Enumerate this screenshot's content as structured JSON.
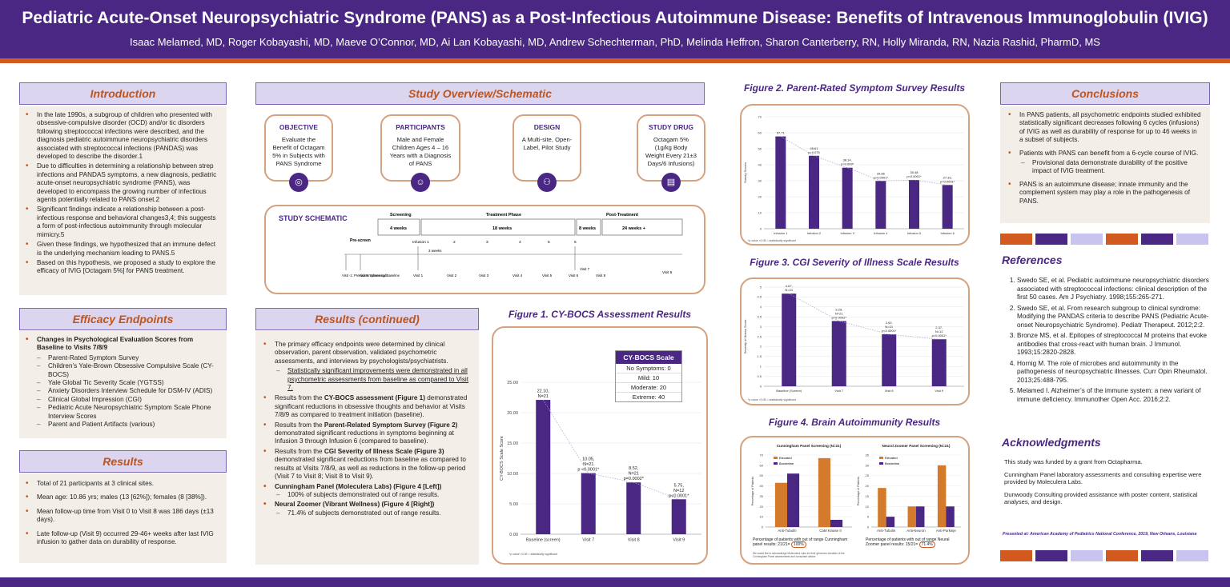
{
  "header": {
    "title": "Pediatric Acute-Onset Neuropsychiatric Syndrome (PANS) as a Post-Infectious Autoimmune Disease: Benefits of Intravenous Immunoglobulin (IVIG)",
    "authors": "Isaac Melamed, MD, Roger Kobayashi, MD, Maeve O’Connor, MD, Ai Lan Kobayashi, MD, Andrew Schechterman, PhD, Melinda Heffron, Sharon Canterberry, RN, Holly Miranda, RN, Nazia Rashid, PharmD, MS"
  },
  "colors": {
    "purple": "#4a2783",
    "orange": "#d35a1f",
    "lavender": "#c9c3ef"
  },
  "introduction": {
    "heading": "Introduction",
    "bullets": [
      "In the late 1990s, a subgroup of children who presented with obsessive-compulsive disorder (OCD) and/or tic disorders following streptococcal infections were described, and the diagnosis pediatric autoimmune neuropsychiatric disorders associated with streptococcal infections (PANDAS) was developed to describe the disorder.1",
      "Due to difficulties in determining a relationship between strep infections and PANDAS symptoms, a new diagnosis, pediatric acute-onset neuropsychiatric syndrome (PANS), was developed to encompass the growing number of infectious agents potentially related to PANS onset.2",
      "Significant findings indicate a relationship between a post-infectious response and behavioral changes3,4; this suggests a form of post-infectious autoimmunity through molecular mimicry.5",
      "Given these findings, we hypothesized that an immune defect is the underlying mechanism leading to PANS.5",
      "Based on this hypothesis, we proposed a study to explore the efficacy of IVIG [Octagam 5%] for PANS treatment."
    ]
  },
  "efficacy": {
    "heading": "Efficacy Endpoints",
    "main": "Changes in Psychological Evaluation Scores from Baseline to Visits 7/8/9",
    "items": [
      "Parent-Rated Symptom Survey",
      "Children’s Yale-Brown Obsessive Compulsive Scale (CY-BOCS)",
      "Yale Global Tic Severity Scale (YGTSS)",
      "Anxiety Disorders Interview Schedule for DSM-IV (ADIS)",
      "Clinical Global Impression (CGI)",
      "Pediatric Acute Neuropsychiatric Symptom Scale Phone Interview Scores",
      "Parent and Patient Artifacts (various)"
    ]
  },
  "results": {
    "heading": "Results",
    "bullets": [
      "Total of 21 participants at 3 clinical sites.",
      "Mean age: 10.86 yrs; males (13 [62%]); females (8 [38%]).",
      "Mean follow-up time from Visit 0 to Visit 8 was 186 days (±13 days).",
      "Late follow-up (Visit 9) occurred 29-46+ weeks after last IVIG infusion to gather data on durability of response."
    ]
  },
  "overview": {
    "heading": "Study Overview/Schematic",
    "cards": [
      {
        "title": "OBJECTIVE",
        "text": "Evaluate the Benefit of Octagam 5% in Subjects with PANS Syndrome",
        "icon": "◎"
      },
      {
        "title": "PARTICIPANTS",
        "text": "Male and Female Children Ages 4 – 16 Years with a Diagnosis of PANS",
        "icon": "☺"
      },
      {
        "title": "DESIGN",
        "text": "A Multi-site, Open-Label, Pilot Study",
        "icon": "⚇"
      },
      {
        "title": "STUDY DRUG",
        "text": "Octagam 5% (1g/kg Body Weight Every 21±3 Days/6 Infusions)",
        "icon": "▤"
      }
    ]
  },
  "schematic": {
    "title": "STUDY SCHEMATIC",
    "phases": {
      "screening": "Screening",
      "treatment": "Treatment Phase",
      "post": "Post-Treatment"
    },
    "durations": {
      "d4": "4 weeks",
      "d18": "18 weeks",
      "d8": "8 weeks",
      "d24": "24 weeks +",
      "d3": "3 weeks"
    },
    "prescreen": "Pre-screen",
    "infusions": [
      "Infusion 1",
      "2",
      "3",
      "4",
      "5",
      "6"
    ],
    "visits": [
      "Visit -1: Pre-screen phone call",
      "Visit 0: Screening/ Baseline",
      "Visit 1",
      "Visit 2",
      "Visit 3",
      "Visit 4",
      "Visit 5",
      "Visit 6",
      "Visit 7",
      "Visit 8",
      "Visit 9"
    ]
  },
  "results_continued": {
    "heading": "Results (continued)",
    "p1": "The primary efficacy endpoints were determined by clinical observation, parent observation, validated psychometric assessments, and interviews by psychologists/psychiatrists.",
    "p1sub": "Statistically significant improvements were demonstrated in all psychometric assessments from baseline as compared to Visit 7.",
    "p2a": "Results from the ",
    "p2b": "CY-BOCS assessment (Figure 1)",
    "p2c": " demonstrated significant reductions in obsessive thoughts and behavior at Visits 7/8/9 as compared to treatment initiation (baseline).",
    "p3a": "Results from the ",
    "p3b": "Parent-Related Symptom Survey (Figure 2)",
    "p3c": " demonstrated significant reductions in symptoms beginning at Infusion 3 through Infusion 6 (compared to baseline).",
    "p4a": "Results from the ",
    "p4b": "CGI Severity of Illness Scale (Figure 3)",
    "p4c": " demonstrated significant reductions from baseline as compared to results at Visits 7/8/9, as well as reductions in the follow-up period (Visit 7 to Visit 8; Visit 8 to Visit 9).",
    "p5": "Cunningham Panel (Moleculera Labs) (Figure 4 [Left])",
    "p5sub": "100% of subjects demonstrated out of range results.",
    "p6": "Neural Zoomer (Vibrant Wellness) (Figure 4 [Right])",
    "p6sub": "71.4% of subjects demonstrated out of range results."
  },
  "figure1": {
    "title": "Figure 1. CY-BOCS Assessment Results",
    "legend_title": "CY-BOCS Scale",
    "legend_rows": [
      "No Symptoms: 0",
      "Mild: 10",
      "Moderate: 20",
      "Extreme: 40"
    ],
    "footnote": "*p value <0.05 = statistically significant"
  },
  "figure2": {
    "title": "Figure 2. Parent-Rated Symptom Survey Results",
    "footnote": "*p value <0.05 = statistically significant"
  },
  "figure3": {
    "title": "Figure 3. CGI Severity of Illness Scale Results",
    "footnote": "*p value <0.05 = statistically significant"
  },
  "figure4": {
    "title": "Figure 4. Brain Autoimmunity Results",
    "left_caption": "Percentage of patients with out of range Cunningham panel results: 21/21=",
    "left_pct": "100%",
    "left_note": "We would like to acknowledge Moleculera Labs for their generous donation of the Cunningham Panel assessments and consultant advice.",
    "right_caption": "Percentage of patients with out of range Neural Zoomer panel results: 15/21=",
    "right_pct": "71.4%"
  },
  "conclusions": {
    "heading": "Conclusions",
    "b1": "In PANS patients, all psychometric endpoints studied exhibited statistically significant decreases following 6 cycles (infusions) of IVIG as well as durability of response for up to 46 weeks in a subset of subjects.",
    "b2": "Patients with PANS can benefit from a 6-cycle course of IVIG.",
    "b2sub": "Provisional data demonstrate durability of the positive impact of IVIG treatment.",
    "b3": "PANS is an autoimmune disease; innate immunity and the complement system may play a role in the pathogenesis of PANS."
  },
  "references": {
    "heading": "References",
    "items": [
      "Swedo SE, et al. Pediatric autoimmune neuropsychiatric disorders associated with streptococcal infections: clinical description of the first 50 cases. Am J Psychiatry. 1998;155:265-271.",
      "Swedo SE, et al. From research subgroup to clinical syndrome: Modifying the PANDAS criteria to describe PANS (Pediatric Acute-onset Neuropsychiatric Syndrome). Pediatr Therapeut. 2012;2:2.",
      "Bronze MS, et al. Epitopes of streptococcal M proteins that evoke antibodies that cross-react with human brain. J Immunol. 1993;15:2820-2828.",
      "Hornig M. The role of microbes and autoimmunity in the pathogenesis of neuropsychiatric illnesses. Curr Opin Rheumatol. 2013;25:488-795.",
      "Melamed I. Alzheimer’s of the immune system: a new variant of immune deficiency. Immunother Open Acc. 2016;2:2."
    ]
  },
  "acknowledgments": {
    "heading": "Acknowledgments",
    "items": [
      "This study was funded by a grant from Octapharma.",
      "Cunningham Panel laboratory assessments and consulting expertise were provided by Moleculera Labs.",
      "Dunwoody Consulting provided assistance with poster content, statistical analyses, and design."
    ],
    "presented": "Presented at: American Academy of Pediatrics National Conference, 2019, New Orleans, Louisiana"
  },
  "chart_data": [
    {
      "type": "bar",
      "title": "Figure 1. CY-BOCS Assessment Results",
      "ylabel": "CY-BOCS Scale Score",
      "ylim": [
        0,
        25
      ],
      "yticks": [
        "0.00",
        "5.00",
        "10.00",
        "15.00",
        "20.00",
        "25.00"
      ],
      "categories": [
        "Baseline (screen)",
        "Visit 7",
        "Visit 8",
        "Visit 9"
      ],
      "values": [
        22.1,
        10.05,
        8.52,
        5.75
      ],
      "labels": [
        [
          "22.10,",
          "N=21"
        ],
        [
          "10.05,",
          "N=21",
          "p <0.0001*"
        ],
        [
          "8.52,",
          "N=21",
          "p=0.0002*"
        ],
        [
          "5.75,",
          "N=12",
          "p<0.0001*"
        ]
      ]
    },
    {
      "type": "bar",
      "title": "Figure 2. Parent-Rated Symptom Survey Results",
      "ylabel": "Survey Scores",
      "ylim": [
        0,
        70
      ],
      "yticks": [
        "0",
        "10",
        "20",
        "30",
        "40",
        "50",
        "60",
        "70"
      ],
      "categories": [
        "Infusion 1",
        "Infusion 2",
        "Infusion 3",
        "Infusion 4",
        "Infusion 5",
        "Infusion 6"
      ],
      "values": [
        57.71,
        45.61,
        38.14,
        29.86,
        30.48,
        27.33
      ],
      "labels": [
        [
          "57.71"
        ],
        [
          "45.61",
          "p=0.075"
        ],
        [
          "38.14,",
          "p=0.009*"
        ],
        [
          "29.86",
          "p<0.0001*"
        ],
        [
          "30.48",
          "p<0.0001*"
        ],
        [
          "27.33,",
          "p<0.0001*"
        ]
      ]
    },
    {
      "type": "bar",
      "title": "Figure 3. CGI Severity of Illness Scale Results",
      "ylabel": "Severity of Illness Score",
      "ylim": [
        0,
        5
      ],
      "yticks": [
        "0",
        "0.5",
        "1",
        "1.5",
        "2",
        "2.5",
        "3",
        "3.5",
        "4",
        "4.5",
        "5"
      ],
      "categories": [
        "Baseline (Screen)",
        "Visit 7",
        "Visit 8",
        "Visit 9"
      ],
      "values": [
        4.67,
        3.29,
        2.62,
        2.37
      ],
      "labels": [
        [
          "4.67,",
          "N=21"
        ],
        [
          "3.29,",
          "N=21",
          "p=0.0002*"
        ],
        [
          "2.62,",
          "N=21",
          "p<0.0001*"
        ],
        [
          "2.37,",
          "N=12",
          "p<0.0001*"
        ]
      ]
    },
    {
      "type": "bar",
      "title": "Cunningham Panel Screening (N=21)",
      "ylabel": "Percentage of Patients",
      "ylim": [
        0,
        70
      ],
      "yticks": [
        "0",
        "10",
        "20",
        "30",
        "40",
        "50",
        "60",
        "70"
      ],
      "categories": [
        "Anti-Tubulin",
        "CaM Kinase II"
      ],
      "series": [
        {
          "name": "Elevated",
          "values": [
            43,
            67
          ],
          "color": "#d47a2c"
        },
        {
          "name": "Borderline",
          "values": [
            52,
            7
          ],
          "color": "#4a2783"
        }
      ]
    },
    {
      "type": "bar",
      "title": "Neural Zoomer Panel Screening (N=21)",
      "ylabel": "Percentage of Patients",
      "ylim": [
        0,
        35
      ],
      "yticks": [
        "0",
        "5",
        "10",
        "15",
        "20",
        "25",
        "30",
        "35"
      ],
      "categories": [
        "Anti-Tubulin",
        "Anti-Neuron",
        "Anti-Purkinje"
      ],
      "series": [
        {
          "name": "Elevated",
          "values": [
            19,
            10,
            30
          ],
          "color": "#d47a2c"
        },
        {
          "name": "Borderline",
          "values": [
            5,
            10,
            10
          ],
          "color": "#4a2783"
        }
      ]
    }
  ]
}
